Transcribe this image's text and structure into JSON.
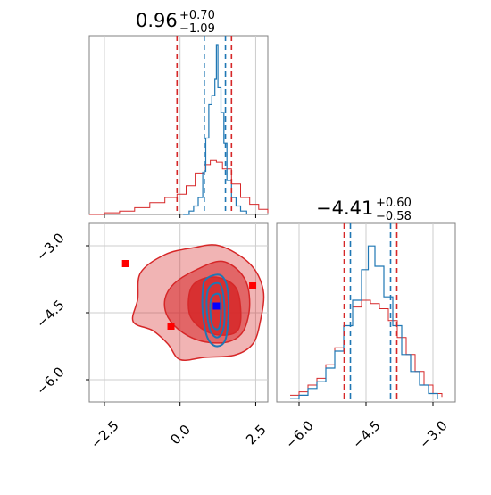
{
  "chart_data": {
    "type": "corner",
    "colors": {
      "reference": "#d62728",
      "posterior": "#1f77b4",
      "truth_marker": "#0000ff",
      "reference_marker": "#ff0000",
      "grid": "#cccccc",
      "frame": "#808080"
    },
    "parameters": [
      {
        "title_median": "0.96",
        "title_plus": "+0.70",
        "title_minus": "−1.09",
        "range": [
          -3.0,
          2.9
        ],
        "ticks": [
          -2.5,
          0.0,
          2.5
        ],
        "tick_labels": [
          "−2.5",
          "0.0",
          "2.5"
        ]
      },
      {
        "title_median": "−4.41",
        "title_plus": "+0.60",
        "title_minus": "−0.58",
        "range": [
          -6.5,
          -2.5
        ],
        "ticks": [
          -6.0,
          -4.5,
          -3.0
        ],
        "tick_labels": [
          "−6.0",
          "−4.5",
          "−3.0"
        ]
      }
    ],
    "marginal_1": {
      "reference_quantiles": [
        -0.1,
        1.7
      ],
      "posterior_quantiles": [
        0.8,
        1.5
      ],
      "posterior_hist": [
        {
          "x": 0.1,
          "y": 0.0
        },
        {
          "x": 0.3,
          "y": 0.02
        },
        {
          "x": 0.45,
          "y": 0.05
        },
        {
          "x": 0.6,
          "y": 0.1
        },
        {
          "x": 0.75,
          "y": 0.25
        },
        {
          "x": 0.85,
          "y": 0.45
        },
        {
          "x": 0.95,
          "y": 0.65
        },
        {
          "x": 1.05,
          "y": 0.7
        },
        {
          "x": 1.15,
          "y": 0.8
        },
        {
          "x": 1.2,
          "y": 1.0
        },
        {
          "x": 1.25,
          "y": 0.75
        },
        {
          "x": 1.35,
          "y": 0.6
        },
        {
          "x": 1.45,
          "y": 0.42
        },
        {
          "x": 1.55,
          "y": 0.2
        },
        {
          "x": 1.7,
          "y": 0.1
        },
        {
          "x": 1.85,
          "y": 0.05
        },
        {
          "x": 2.0,
          "y": 0.02
        },
        {
          "x": 2.2,
          "y": 0.0
        }
      ],
      "reference_hist": [
        {
          "x": -3.0,
          "y": 0.0
        },
        {
          "x": -2.5,
          "y": 0.01
        },
        {
          "x": -2.0,
          "y": 0.02
        },
        {
          "x": -1.5,
          "y": 0.04
        },
        {
          "x": -1.0,
          "y": 0.07
        },
        {
          "x": -0.5,
          "y": 0.1
        },
        {
          "x": -0.1,
          "y": 0.12
        },
        {
          "x": 0.2,
          "y": 0.17
        },
        {
          "x": 0.5,
          "y": 0.24
        },
        {
          "x": 0.8,
          "y": 0.29
        },
        {
          "x": 1.0,
          "y": 0.32
        },
        {
          "x": 1.2,
          "y": 0.31
        },
        {
          "x": 1.4,
          "y": 0.27
        },
        {
          "x": 1.7,
          "y": 0.18
        },
        {
          "x": 2.0,
          "y": 0.1
        },
        {
          "x": 2.3,
          "y": 0.06
        },
        {
          "x": 2.6,
          "y": 0.03
        },
        {
          "x": 2.9,
          "y": 0.01
        }
      ]
    },
    "marginal_2": {
      "reference_quantiles": [
        -4.99,
        -3.81
      ],
      "posterior_quantiles": [
        -4.85,
        -3.95
      ],
      "posterior_hist": [
        {
          "x": -6.2,
          "y": 0.02
        },
        {
          "x": -6.0,
          "y": 0.04
        },
        {
          "x": -5.8,
          "y": 0.08
        },
        {
          "x": -5.6,
          "y": 0.12
        },
        {
          "x": -5.4,
          "y": 0.2
        },
        {
          "x": -5.2,
          "y": 0.3
        },
        {
          "x": -5.0,
          "y": 0.45
        },
        {
          "x": -4.8,
          "y": 0.6
        },
        {
          "x": -4.6,
          "y": 0.78
        },
        {
          "x": -4.45,
          "y": 0.92
        },
        {
          "x": -4.3,
          "y": 0.8
        },
        {
          "x": -4.1,
          "y": 0.62
        },
        {
          "x": -3.9,
          "y": 0.45
        },
        {
          "x": -3.7,
          "y": 0.28
        },
        {
          "x": -3.5,
          "y": 0.18
        },
        {
          "x": -3.3,
          "y": 0.1
        },
        {
          "x": -3.1,
          "y": 0.05
        },
        {
          "x": -2.9,
          "y": 0.02
        }
      ],
      "reference_hist": [
        {
          "x": -6.2,
          "y": 0.04
        },
        {
          "x": -6.0,
          "y": 0.06
        },
        {
          "x": -5.8,
          "y": 0.1
        },
        {
          "x": -5.6,
          "y": 0.14
        },
        {
          "x": -5.4,
          "y": 0.22
        },
        {
          "x": -5.2,
          "y": 0.32
        },
        {
          "x": -5.0,
          "y": 0.45
        },
        {
          "x": -4.8,
          "y": 0.56
        },
        {
          "x": -4.6,
          "y": 0.6
        },
        {
          "x": -4.4,
          "y": 0.58
        },
        {
          "x": -4.2,
          "y": 0.55
        },
        {
          "x": -4.0,
          "y": 0.48
        },
        {
          "x": -3.8,
          "y": 0.38
        },
        {
          "x": -3.6,
          "y": 0.28
        },
        {
          "x": -3.4,
          "y": 0.18
        },
        {
          "x": -3.2,
          "y": 0.1
        },
        {
          "x": -3.0,
          "y": 0.05
        },
        {
          "x": -2.8,
          "y": 0.03
        }
      ]
    },
    "joint": {
      "reference_contours": [
        {
          "level": "outer",
          "opacity": 0.35,
          "points": [
            [
              -1.3,
              -3.6
            ],
            [
              -0.5,
              -3.2
            ],
            [
              0.4,
              -3.05
            ],
            [
              1.3,
              -3.0
            ],
            [
              2.3,
              -3.4
            ],
            [
              2.75,
              -4.0
            ],
            [
              2.65,
              -4.7
            ],
            [
              2.4,
              -5.2
            ],
            [
              1.8,
              -5.45
            ],
            [
              0.8,
              -5.5
            ],
            [
              0.0,
              -5.55
            ],
            [
              -0.4,
              -5.2
            ],
            [
              -0.9,
              -4.9
            ],
            [
              -1.55,
              -4.7
            ],
            [
              -1.4,
              -4.2
            ]
          ]
        },
        {
          "level": "middle",
          "opacity": 0.55,
          "points": [
            [
              -0.2,
              -3.85
            ],
            [
              0.5,
              -3.55
            ],
            [
              1.4,
              -3.35
            ],
            [
              2.1,
              -3.7
            ],
            [
              2.3,
              -4.3
            ],
            [
              2.1,
              -4.9
            ],
            [
              1.6,
              -5.15
            ],
            [
              0.8,
              -5.15
            ],
            [
              0.1,
              -4.95
            ],
            [
              -0.4,
              -4.6
            ],
            [
              -0.5,
              -4.2
            ]
          ]
        },
        {
          "level": "inner",
          "opacity": 0.85,
          "points": [
            [
              0.4,
              -3.9
            ],
            [
              1.1,
              -3.7
            ],
            [
              1.8,
              -3.9
            ],
            [
              2.0,
              -4.4
            ],
            [
              1.9,
              -4.9
            ],
            [
              1.3,
              -5.0
            ],
            [
              0.7,
              -4.85
            ],
            [
              0.3,
              -4.5
            ]
          ]
        }
      ],
      "posterior_contours": [
        {
          "level": "outer",
          "points": [
            [
              0.85,
              -3.75
            ],
            [
              1.3,
              -3.65
            ],
            [
              1.55,
              -3.9
            ],
            [
              1.6,
              -4.5
            ],
            [
              1.5,
              -5.1
            ],
            [
              1.2,
              -5.25
            ],
            [
              0.9,
              -5.05
            ],
            [
              0.75,
              -4.5
            ],
            [
              0.75,
              -4.0
            ]
          ]
        },
        {
          "level": "middle",
          "points": [
            [
              0.95,
              -3.95
            ],
            [
              1.3,
              -3.85
            ],
            [
              1.45,
              -4.2
            ],
            [
              1.45,
              -4.8
            ],
            [
              1.25,
              -5.05
            ],
            [
              1.0,
              -4.9
            ],
            [
              0.88,
              -4.4
            ]
          ]
        },
        {
          "level": "inner",
          "points": [
            [
              1.05,
              -4.15
            ],
            [
              1.3,
              -4.1
            ],
            [
              1.35,
              -4.5
            ],
            [
              1.28,
              -4.85
            ],
            [
              1.08,
              -4.8
            ],
            [
              1.0,
              -4.45
            ]
          ]
        }
      ],
      "truth_point": {
        "x": 1.2,
        "y": -4.35
      },
      "reference_points": [
        {
          "x": -1.8,
          "y": -3.4
        },
        {
          "x": 2.4,
          "y": -3.9
        },
        {
          "x": -0.3,
          "y": -4.8
        }
      ]
    }
  }
}
